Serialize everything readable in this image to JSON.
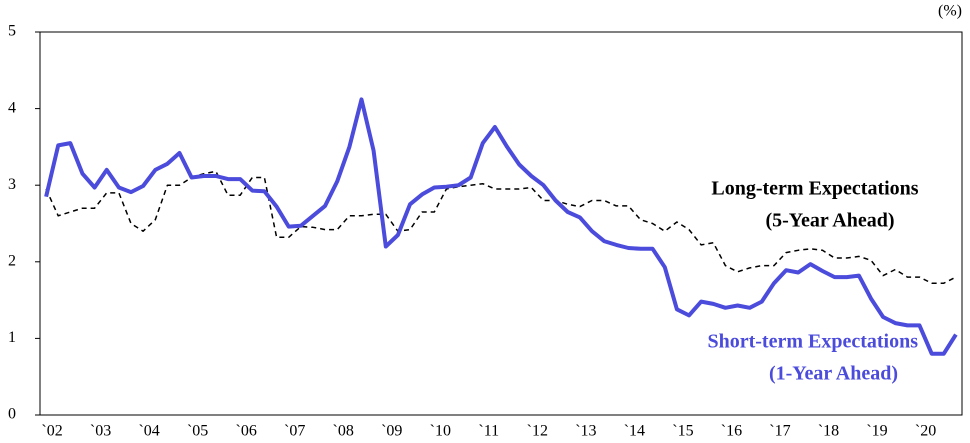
{
  "chart_data": {
    "type": "line",
    "unit": "(%)",
    "categories": [
      "`02",
      null,
      null,
      null,
      "`03",
      null,
      null,
      null,
      "`04",
      null,
      null,
      null,
      "`05",
      null,
      null,
      null,
      "`06",
      null,
      null,
      null,
      "`07",
      null,
      null,
      null,
      "`08",
      null,
      null,
      null,
      "`09",
      null,
      null,
      null,
      "`10",
      null,
      null,
      null,
      "`11",
      null,
      null,
      null,
      "`12",
      null,
      null,
      null,
      "`13",
      null,
      null,
      null,
      "`14",
      null,
      null,
      null,
      "`15",
      null,
      null,
      null,
      "`16",
      null,
      null,
      null,
      "`17",
      null,
      null,
      null,
      "`18",
      null,
      null,
      null,
      "`19",
      null,
      null,
      null,
      "`20",
      null,
      null,
      null
    ],
    "series": [
      {
        "name": "Long-term Expectations",
        "horizon": "(5-Year Ahead)",
        "color": "#000000",
        "style": "dashed",
        "values": [
          2.95,
          2.6,
          2.65,
          2.7,
          2.7,
          2.9,
          2.9,
          2.5,
          2.4,
          2.55,
          3.0,
          3.0,
          3.1,
          3.15,
          3.18,
          2.87,
          2.87,
          3.1,
          3.1,
          2.32,
          2.32,
          2.46,
          2.45,
          2.42,
          2.42,
          2.6,
          2.6,
          2.62,
          2.62,
          2.4,
          2.42,
          2.65,
          2.65,
          2.95,
          2.98,
          3.0,
          3.02,
          2.95,
          2.95,
          2.95,
          2.97,
          2.8,
          2.8,
          2.75,
          2.72,
          2.8,
          2.8,
          2.73,
          2.73,
          2.55,
          2.5,
          2.4,
          2.52,
          2.42,
          2.22,
          2.25,
          1.95,
          1.87,
          1.92,
          1.95,
          1.95,
          2.12,
          2.15,
          2.17,
          2.15,
          2.05,
          2.05,
          2.07,
          2.02,
          1.82,
          1.9,
          1.8,
          1.8,
          1.72,
          1.72,
          1.8
        ]
      },
      {
        "name": "Short-term Expectations",
        "horizon": "(1-Year Ahead)",
        "color": "#4b4bdc",
        "style": "solid",
        "values": [
          2.85,
          3.52,
          3.55,
          3.15,
          2.97,
          3.2,
          2.97,
          2.91,
          2.99,
          3.2,
          3.28,
          3.42,
          3.1,
          3.12,
          3.12,
          3.08,
          3.08,
          2.93,
          2.92,
          2.72,
          2.46,
          2.47,
          2.6,
          2.73,
          3.05,
          3.5,
          4.12,
          3.45,
          2.2,
          2.35,
          2.75,
          2.88,
          2.97,
          2.98,
          3.0,
          3.1,
          3.55,
          3.76,
          3.5,
          3.27,
          3.12,
          3.0,
          2.8,
          2.65,
          2.58,
          2.4,
          2.27,
          2.22,
          2.18,
          2.17,
          2.17,
          1.93,
          1.38,
          1.3,
          1.48,
          1.45,
          1.4,
          1.43,
          1.4,
          1.48,
          1.72,
          1.89,
          1.86,
          1.97,
          1.88,
          1.8,
          1.8,
          1.82,
          1.52,
          1.28,
          1.2,
          1.17,
          1.17,
          0.8,
          0.8,
          1.05
        ]
      }
    ],
    "ylim": [
      0,
      5
    ],
    "yticks": [
      0,
      1,
      2,
      3,
      4,
      5
    ],
    "grid": false
  }
}
